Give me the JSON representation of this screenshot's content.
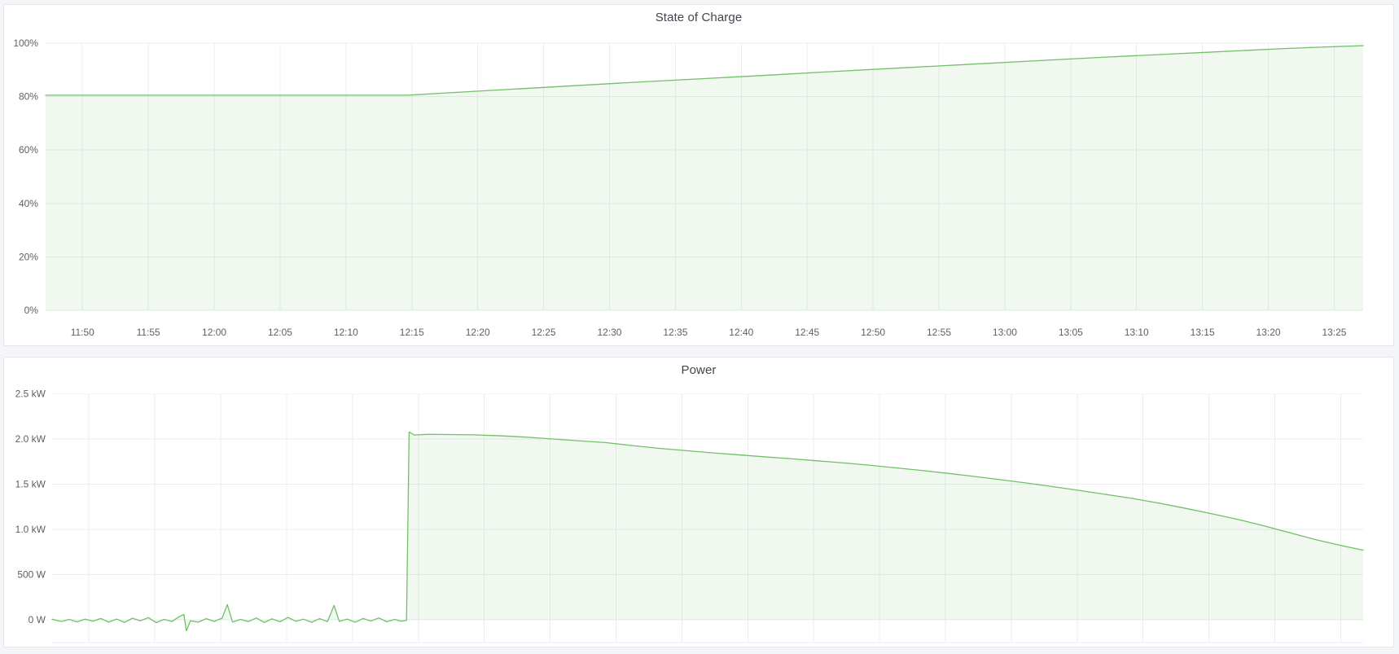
{
  "page": {
    "background_color": "#f4f5f9",
    "panel_background": "#ffffff",
    "accent_green": "#73BF69"
  },
  "panels": [
    {
      "title": "State of Charge"
    },
    {
      "title": "Power"
    }
  ],
  "chart_data": [
    {
      "type": "area",
      "title": "State of Charge",
      "xlabel": "",
      "ylabel": "",
      "x_range": [
        "11:47",
        "13:27"
      ],
      "ylim": [
        0,
        100
      ],
      "grid": true,
      "legend": "hidden",
      "x_ticks": [
        "11:50",
        "11:55",
        "12:00",
        "12:05",
        "12:10",
        "12:15",
        "12:20",
        "12:25",
        "12:30",
        "12:35",
        "12:40",
        "12:45",
        "12:50",
        "12:55",
        "13:00",
        "13:05",
        "13:10",
        "13:15",
        "13:20",
        "13:25"
      ],
      "y_ticks": [
        {
          "label": "0%",
          "value": 0
        },
        {
          "label": "20%",
          "value": 20
        },
        {
          "label": "40%",
          "value": 40
        },
        {
          "label": "60%",
          "value": 60
        },
        {
          "label": "80%",
          "value": 80
        },
        {
          "label": "100%",
          "value": 100
        }
      ],
      "series": [
        {
          "name": "State of Charge",
          "unit": "%",
          "color": "#73BF69",
          "fill": "rgba(115,191,105,0.11)",
          "t_unit": "minutes since 11:47",
          "points": [
            [
              0,
              80.5
            ],
            [
              5,
              80.5
            ],
            [
              10,
              80.5
            ],
            [
              15,
              80.5
            ],
            [
              20,
              80.5
            ],
            [
              25,
              80.5
            ],
            [
              27.5,
              80.5
            ],
            [
              30,
              81.2
            ],
            [
              35,
              82.6
            ],
            [
              40,
              84.0
            ],
            [
              45,
              85.4
            ],
            [
              50,
              86.7
            ],
            [
              55,
              88.0
            ],
            [
              60,
              89.4
            ],
            [
              65,
              90.7
            ],
            [
              70,
              92.0
            ],
            [
              75,
              93.3
            ],
            [
              80,
              94.6
            ],
            [
              85,
              95.8
            ],
            [
              88,
              96.5
            ],
            [
              91,
              97.2
            ],
            [
              94,
              97.9
            ],
            [
              97,
              98.5
            ],
            [
              100,
              99.0
            ]
          ]
        }
      ]
    },
    {
      "type": "area",
      "title": "Power",
      "xlabel": "",
      "ylabel": "",
      "x_range": [
        "11:47",
        "13:27"
      ],
      "ylim": [
        -250,
        2500
      ],
      "grid": true,
      "legend": "hidden",
      "x_ticks": [
        "11:50",
        "11:55",
        "12:00",
        "12:05",
        "12:10",
        "12:15",
        "12:20",
        "12:25",
        "12:30",
        "12:35",
        "12:40",
        "12:45",
        "12:50",
        "12:55",
        "13:00",
        "13:05",
        "13:10",
        "13:15",
        "13:20",
        "13:25"
      ],
      "x_tick_labels_visible": false,
      "y_ticks": [
        {
          "label": "0 W",
          "value": 0
        },
        {
          "label": "500 W",
          "value": 500
        },
        {
          "label": "1.0 kW",
          "value": 1000
        },
        {
          "label": "1.5 kW",
          "value": 1500
        },
        {
          "label": "2.0 kW",
          "value": 2000
        },
        {
          "label": "2.5 kW",
          "value": 2500
        }
      ],
      "series": [
        {
          "name": "Power",
          "unit": "W",
          "color": "#73BF69",
          "fill": "rgba(115,191,105,0.11)",
          "t_unit": "minutes since 11:47",
          "points": [
            [
              0,
              8
            ],
            [
              0.7,
              -18
            ],
            [
              1.3,
              6
            ],
            [
              1.9,
              -22
            ],
            [
              2.5,
              10
            ],
            [
              3.1,
              -14
            ],
            [
              3.7,
              16
            ],
            [
              4.3,
              -24
            ],
            [
              4.9,
              10
            ],
            [
              5.5,
              -28
            ],
            [
              6.1,
              20
            ],
            [
              6.7,
              -10
            ],
            [
              7.3,
              26
            ],
            [
              7.9,
              -30
            ],
            [
              8.5,
              6
            ],
            [
              9.1,
              -16
            ],
            [
              9.7,
              40
            ],
            [
              10.0,
              60
            ],
            [
              10.2,
              -120
            ],
            [
              10.5,
              -10
            ],
            [
              11.1,
              -24
            ],
            [
              11.7,
              14
            ],
            [
              12.3,
              -16
            ],
            [
              12.9,
              20
            ],
            [
              13.3,
              170
            ],
            [
              13.7,
              -24
            ],
            [
              14.3,
              6
            ],
            [
              14.9,
              -18
            ],
            [
              15.5,
              22
            ],
            [
              16.1,
              -28
            ],
            [
              16.7,
              12
            ],
            [
              17.3,
              -20
            ],
            [
              17.9,
              28
            ],
            [
              18.5,
              -14
            ],
            [
              19.1,
              8
            ],
            [
              19.7,
              -26
            ],
            [
              20.3,
              14
            ],
            [
              20.9,
              -18
            ],
            [
              21.4,
              160
            ],
            [
              21.8,
              -16
            ],
            [
              22.4,
              10
            ],
            [
              23.0,
              -26
            ],
            [
              23.6,
              16
            ],
            [
              24.2,
              -12
            ],
            [
              24.8,
              22
            ],
            [
              25.4,
              -20
            ],
            [
              26.0,
              6
            ],
            [
              26.5,
              -14
            ],
            [
              26.9,
              -5
            ],
            [
              27.1,
              2080
            ],
            [
              27.5,
              2046
            ],
            [
              28.5,
              2054
            ],
            [
              30,
              2052
            ],
            [
              32,
              2048
            ],
            [
              34,
              2038
            ],
            [
              36,
              2022
            ],
            [
              38,
              2002
            ],
            [
              40,
              1982
            ],
            [
              42,
              1962
            ],
            [
              44,
              1930
            ],
            [
              46,
              1900
            ],
            [
              48,
              1875
            ],
            [
              50,
              1850
            ],
            [
              52,
              1828
            ],
            [
              54,
              1806
            ],
            [
              56,
              1785
            ],
            [
              58,
              1762
            ],
            [
              60,
              1738
            ],
            [
              62,
              1712
            ],
            [
              64,
              1684
            ],
            [
              66,
              1654
            ],
            [
              68,
              1622
            ],
            [
              70,
              1588
            ],
            [
              72,
              1552
            ],
            [
              74,
              1514
            ],
            [
              76,
              1474
            ],
            [
              78,
              1432
            ],
            [
              80,
              1388
            ],
            [
              82,
              1344
            ],
            [
              84,
              1292
            ],
            [
              86,
              1236
            ],
            [
              88,
              1176
            ],
            [
              90,
              1112
            ],
            [
              92,
              1040
            ],
            [
              94,
              962
            ],
            [
              96,
              884
            ],
            [
              98,
              818
            ],
            [
              99.5,
              772
            ]
          ]
        }
      ]
    }
  ]
}
